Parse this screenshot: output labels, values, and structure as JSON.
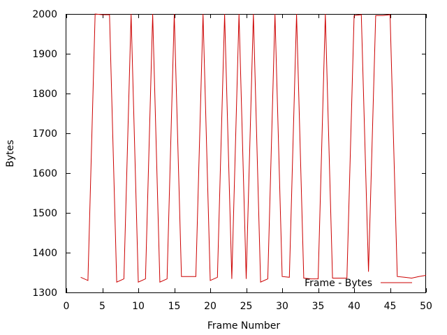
{
  "chart_data": {
    "type": "line",
    "title": "",
    "xlabel": "Frame Number",
    "ylabel": "Bytes",
    "xlim": [
      0,
      50
    ],
    "ylim": [
      1300,
      2000
    ],
    "x_ticks": [
      0,
      5,
      10,
      15,
      20,
      25,
      30,
      35,
      40,
      45,
      50
    ],
    "y_ticks": [
      1300,
      1400,
      1500,
      1600,
      1700,
      1800,
      1900,
      2000
    ],
    "grid": false,
    "legend_position": "bottom-right",
    "series": [
      {
        "name": "Frame - Bytes",
        "color": "#cc0000",
        "points": [
          [
            2,
            1338
          ],
          [
            3,
            1330
          ],
          [
            4,
            2000
          ],
          [
            5,
            1998
          ],
          [
            6,
            1998
          ],
          [
            7,
            1326
          ],
          [
            8,
            1334
          ],
          [
            9,
            2000
          ],
          [
            10,
            1326
          ],
          [
            11,
            1334
          ],
          [
            12,
            2000
          ],
          [
            13,
            1326
          ],
          [
            14,
            1334
          ],
          [
            15,
            2000
          ],
          [
            16,
            1340
          ],
          [
            17,
            1340
          ],
          [
            18,
            1340
          ],
          [
            19,
            2000
          ],
          [
            20,
            1330
          ],
          [
            21,
            1338
          ],
          [
            22,
            2000
          ],
          [
            23,
            1334
          ],
          [
            24,
            2000
          ],
          [
            25,
            1334
          ],
          [
            26,
            2000
          ],
          [
            27,
            1326
          ],
          [
            28,
            1334
          ],
          [
            29,
            2000
          ],
          [
            30,
            1340
          ],
          [
            31,
            1338
          ],
          [
            32,
            2000
          ],
          [
            33,
            1336
          ],
          [
            34,
            1334
          ],
          [
            35,
            1334
          ],
          [
            36,
            2000
          ],
          [
            37,
            1336
          ],
          [
            38,
            1336
          ],
          [
            39,
            1336
          ],
          [
            40,
            1996
          ],
          [
            41,
            1998
          ],
          [
            42,
            1352
          ],
          [
            43,
            1996
          ],
          [
            44,
            1996
          ],
          [
            45,
            1998
          ],
          [
            46,
            1340
          ],
          [
            47,
            1338
          ],
          [
            48,
            1336
          ],
          [
            49,
            1340
          ],
          [
            50,
            1343
          ]
        ]
      }
    ]
  }
}
